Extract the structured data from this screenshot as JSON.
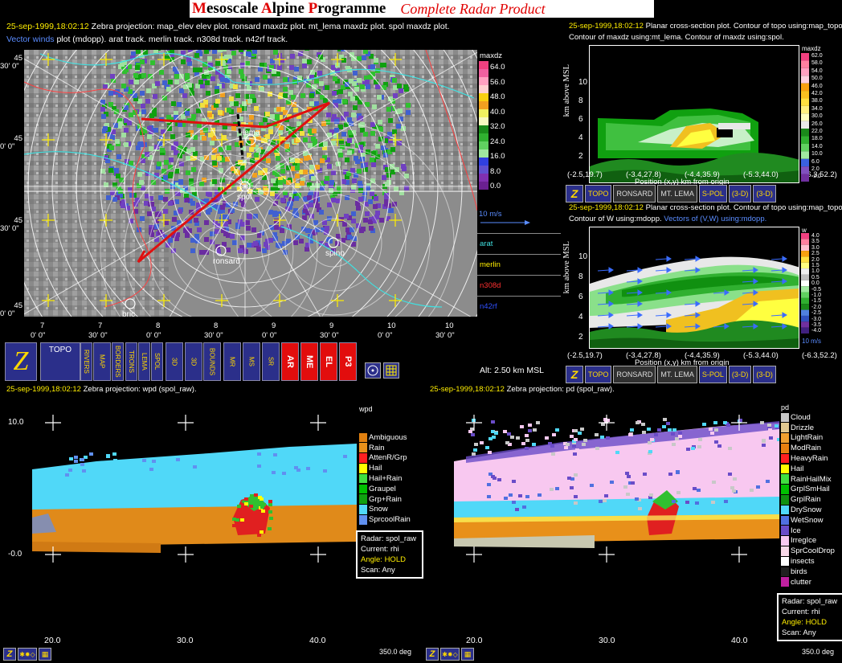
{
  "header": {
    "title_parts": [
      {
        "t": "M",
        "red": true
      },
      {
        "t": "esoscale ",
        "red": false
      },
      {
        "t": "A",
        "red": true
      },
      {
        "t": "lpine ",
        "red": false
      },
      {
        "t": "P",
        "red": true
      },
      {
        "t": "rogramme",
        "red": false
      }
    ],
    "subtitle": "Complete Radar Product"
  },
  "map": {
    "line1_time": "25-sep-1999,18:02:12",
    "line1_text": "Zebra projection: map_elev elev plot. ronsard maxdz plot. mt_lema maxdz plot. spol maxdz plot.",
    "line2_vec": "Vector winds",
    "line2_text": "plot (mdopp). arat track.   merlin track.   n308d track.   n42rf track.",
    "lat_labels": [
      {
        "a": "45",
        "b": "30' 0\""
      },
      {
        "a": "45",
        "b": "0' 0\""
      },
      {
        "a": "45",
        "b": "30' 0\""
      },
      {
        "a": "45",
        "b": "0' 0\""
      }
    ],
    "lon_labels": [
      {
        "a": "7",
        "b": "0' 0\""
      },
      {
        "a": "7",
        "b": "30' 0\""
      },
      {
        "a": "8",
        "b": "0' 0\""
      },
      {
        "a": "8",
        "b": "30' 0\""
      },
      {
        "a": "9",
        "b": "0' 0\""
      },
      {
        "a": "9",
        "b": "30' 0\""
      },
      {
        "a": "10",
        "b": "0' 0\""
      },
      {
        "a": "10",
        "b": "30' 0\""
      }
    ],
    "stations": [
      "lema",
      "spol",
      "ronsard",
      "spino",
      "bric"
    ],
    "legend_title": "maxdz",
    "legend_values": [
      "64.0",
      "56.0",
      "48.0",
      "40.0",
      "32.0",
      "24.0",
      "16.0",
      "8.0",
      "0.0"
    ],
    "vec_label": "10 m/s",
    "tracks": [
      {
        "name": "arat",
        "color": "#40e0e0"
      },
      {
        "name": "merlin",
        "color": "#ffee00"
      },
      {
        "name": "n308d",
        "color": "#ff3030"
      },
      {
        "name": "n42rf",
        "color": "#3050ff"
      }
    ],
    "altitude": "Alt: 2.50 km MSL"
  },
  "toolbar": {
    "buttons": [
      "Z",
      "TOPO",
      "RIVERS",
      "MAP",
      "BORDERS",
      "TRONS",
      "LEMA",
      "SPOL",
      "3D",
      "3D",
      "BOUNDS",
      "MR",
      "MS",
      "SR",
      "AR",
      "ME",
      "EL",
      "P3"
    ]
  },
  "xsec1": {
    "time": "25-sep-1999,18:02:12",
    "line1": "Planar cross-section plot. Contour of topo using:map_topo.",
    "line2": "Contour of maxdz using:mt_lema. Contour of maxdz using:spol.",
    "ylabel": "km above MSL",
    "yticks": [
      "10",
      "8",
      "6",
      "4",
      "2"
    ],
    "xticks": [
      "(-2.5,19.7)",
      "(-3.4,27.8)",
      "(-4.4,35.9)",
      "(-5.3,44.0)",
      "(-6.3,52.2)"
    ],
    "xlabel": "Position (x,y) km from origin",
    "legend_title": "maxdz",
    "legend_values": [
      "62.0",
      "58.0",
      "54.0",
      "50.0",
      "46.0",
      "42.0",
      "38.0",
      "34.0",
      "30.0",
      "26.0",
      "22.0",
      "18.0",
      "14.0",
      "10.0",
      "6.0",
      "2.0",
      "-2.0"
    ],
    "buttons": [
      "Z",
      "TOPO",
      "RONSARD",
      "MT. LEMA",
      "S-POL",
      "(3-D)",
      "(3-D)"
    ]
  },
  "xsec2": {
    "time": "25-sep-1999,18:02:12",
    "line1": "Planar cross-section plot. Contour of topo using:map_topo.",
    "line2a": "Contour of W using:mdopp.",
    "line2b": "Vectors of (V,W) using:mdopp.",
    "ylabel": "km above MSL",
    "yticks": [
      "10",
      "8",
      "6",
      "4",
      "2"
    ],
    "xticks": [
      "(-2.5,19.7)",
      "(-3.4,27.8)",
      "(-4.4,35.9)",
      "(-5.3,44.0)",
      "(-6.3,52.2)"
    ],
    "xlabel": "Position (x,y) km from origin",
    "legend_title": "w",
    "legend_values": [
      "4.0",
      "3.5",
      "3.0",
      "2.5",
      "2.0",
      "1.5",
      "1.0",
      "0.5",
      "0.0",
      "-0.5",
      "-1.0",
      "-1.5",
      "-2.0",
      "-2.5",
      "-3.0",
      "-3.5",
      "-4.0"
    ],
    "vec_label": "10 m/s",
    "buttons": [
      "Z",
      "TOPO",
      "RONSARD",
      "MT. LEMA",
      "S-POL",
      "(3-D)",
      "(3-D)"
    ]
  },
  "rhi1": {
    "time": "25-sep-1999,18:02:12",
    "text": "Zebra projection: wpd (spol_raw).",
    "legend_title": "wpd",
    "categories": [
      {
        "name": "Ambiguous",
        "color": "#e08010"
      },
      {
        "name": "Rain",
        "color": "#e8901a"
      },
      {
        "name": "AttenR/Grp",
        "color": "#ff2020"
      },
      {
        "name": "Hail",
        "color": "#ffff00"
      },
      {
        "name": "Hail+Rain",
        "color": "#40e040"
      },
      {
        "name": "Graupel",
        "color": "#00c000"
      },
      {
        "name": "Grp+Rain",
        "color": "#10a010"
      },
      {
        "name": "Snow",
        "color": "#50d8f8"
      },
      {
        "name": "SprcoolRain",
        "color": "#6090f0"
      }
    ],
    "yticks": [
      "10.0",
      "-0.0"
    ],
    "xticks": [
      "20.0",
      "30.0",
      "40.0"
    ],
    "azimuth": "350.0 deg",
    "info": {
      "radar": "Radar: spol_raw",
      "current": "Current: rhi",
      "angle": "Angle: HOLD",
      "scan": "Scan: Any"
    }
  },
  "rhi2": {
    "time": "25-sep-1999,18:02:12",
    "text": "Zebra projection: pd (spol_raw).",
    "legend_title": "pd",
    "categories": [
      {
        "name": "Cloud",
        "color": "#c8c8c8"
      },
      {
        "name": "Drizzle",
        "color": "#e0c890"
      },
      {
        "name": "LightRain",
        "color": "#f0a030"
      },
      {
        "name": "ModRain",
        "color": "#e88010"
      },
      {
        "name": "HeavyRain",
        "color": "#ff2020"
      },
      {
        "name": "Hail",
        "color": "#ffff00"
      },
      {
        "name": "RainHailMix",
        "color": "#40e040"
      },
      {
        "name": "GrplSmHail",
        "color": "#00c000"
      },
      {
        "name": "GrplRain",
        "color": "#109010"
      },
      {
        "name": "DrySnow",
        "color": "#50d8f8"
      },
      {
        "name": "WetSnow",
        "color": "#5070e0"
      },
      {
        "name": "Ice",
        "color": "#6a4cc8"
      },
      {
        "name": "IrregIce",
        "color": "#f8c8f0"
      },
      {
        "name": "SprCoolDrop",
        "color": "#f8d8e8"
      },
      {
        "name": "insects",
        "color": "#ffffff"
      },
      {
        "name": "birds",
        "color": "#202020"
      },
      {
        "name": "clutter",
        "color": "#c020a0"
      }
    ],
    "xticks": [
      "20.0",
      "30.0",
      "40.0"
    ],
    "azimuth": "350.0 deg",
    "info": {
      "radar": "Radar: spol_raw",
      "current": "Current: rhi",
      "angle": "Angle: HOLD",
      "scan": "Scan: Any"
    }
  }
}
